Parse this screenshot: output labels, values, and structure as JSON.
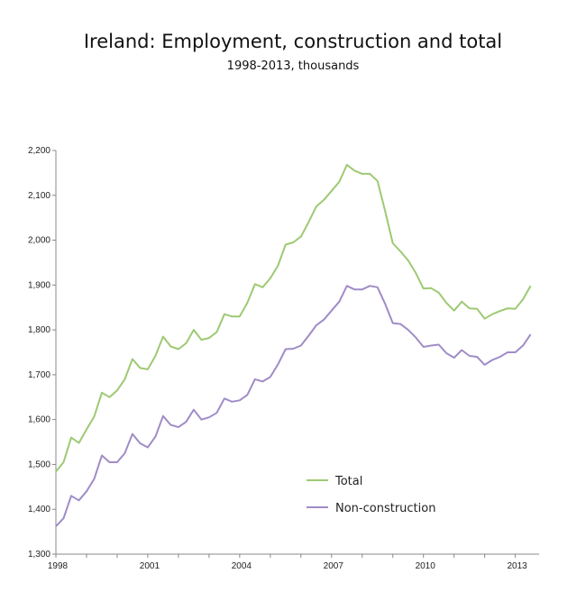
{
  "chart_data": {
    "type": "line",
    "title": "Ireland: Employment, construction and total",
    "subtitle": "1998-2013, thousands",
    "xlabel": "",
    "ylabel": "",
    "xlim": [
      1998,
      2013.6
    ],
    "ylim": [
      1300,
      2200
    ],
    "x_ticks": [
      1998,
      2001,
      2004,
      2007,
      2010,
      2013
    ],
    "y_ticks": [
      1300,
      1400,
      1500,
      1600,
      1700,
      1800,
      1900,
      2000,
      2100,
      2200
    ],
    "y_tick_labels": [
      "1,300",
      "1,400",
      "1,500",
      "1,600",
      "1,700",
      "1,800",
      "1,900",
      "2,000",
      "2,100",
      "2,200"
    ],
    "x_tick_labels": [
      "1998",
      "2001",
      "2004",
      "2007",
      "2010",
      "2013"
    ],
    "legend_position": "lower-middle",
    "grid": false,
    "x": [
      1998.0,
      1998.25,
      1998.5,
      1998.75,
      1999.0,
      1999.25,
      1999.5,
      1999.75,
      2000.0,
      2000.25,
      2000.5,
      2000.75,
      2001.0,
      2001.25,
      2001.5,
      2001.75,
      2002.0,
      2002.25,
      2002.5,
      2002.75,
      2003.0,
      2003.25,
      2003.5,
      2003.75,
      2004.0,
      2004.25,
      2004.5,
      2004.75,
      2005.0,
      2005.25,
      2005.5,
      2005.75,
      2006.0,
      2006.25,
      2006.5,
      2006.75,
      2007.0,
      2007.25,
      2007.5,
      2007.75,
      2008.0,
      2008.25,
      2008.5,
      2008.75,
      2009.0,
      2009.25,
      2009.5,
      2009.75,
      2010.0,
      2010.25,
      2010.5,
      2010.75,
      2011.0,
      2011.25,
      2011.5,
      2011.75,
      2012.0,
      2012.25,
      2012.5,
      2012.75,
      2013.0,
      2013.25,
      2013.5
    ],
    "series": [
      {
        "name": "Total",
        "color": "#9ec973",
        "values": [
          1484,
          1505,
          1560,
          1548,
          1578,
          1607,
          1660,
          1650,
          1665,
          1690,
          1735,
          1715,
          1712,
          1742,
          1785,
          1763,
          1757,
          1770,
          1800,
          1778,
          1782,
          1795,
          1835,
          1830,
          1830,
          1860,
          1902,
          1895,
          1915,
          1943,
          1990,
          1995,
          2008,
          2040,
          2075,
          2090,
          2110,
          2130,
          2168,
          2155,
          2148,
          2148,
          2132,
          2065,
          1993,
          1975,
          1955,
          1927,
          1892,
          1893,
          1883,
          1860,
          1843,
          1863,
          1848,
          1847,
          1825,
          1835,
          1842,
          1848,
          1847,
          1868,
          1898
        ]
      },
      {
        "name": "Non-construction",
        "color": "#a08cc7",
        "values": [
          1362,
          1380,
          1430,
          1420,
          1440,
          1468,
          1520,
          1505,
          1505,
          1525,
          1568,
          1547,
          1538,
          1562,
          1608,
          1588,
          1583,
          1595,
          1622,
          1600,
          1605,
          1615,
          1647,
          1640,
          1643,
          1655,
          1690,
          1685,
          1695,
          1723,
          1757,
          1758,
          1765,
          1787,
          1810,
          1823,
          1843,
          1863,
          1898,
          1890,
          1890,
          1898,
          1895,
          1858,
          1815,
          1813,
          1800,
          1783,
          1762,
          1765,
          1767,
          1748,
          1738,
          1755,
          1742,
          1740,
          1722,
          1733,
          1740,
          1750,
          1750,
          1765,
          1790
        ]
      }
    ]
  }
}
